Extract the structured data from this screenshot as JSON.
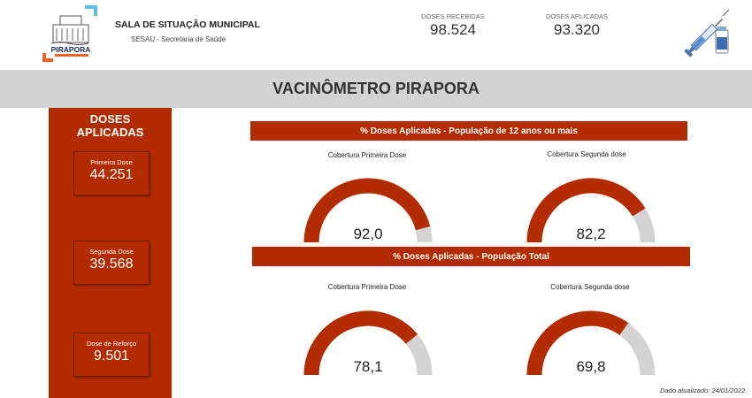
{
  "header": {
    "logo_text": "PIRAPORA",
    "title": "SALA DE SITUAÇÃO MUNICIPAL",
    "subtitle": "SESAU - Secretaria de Saúde",
    "kpis": [
      {
        "label": "DOSES RECEBIDAS",
        "value": "98.524"
      },
      {
        "label": "DOSES APLICADAS",
        "value": "93.320"
      }
    ],
    "vaccine_icon": "syringe-vial-icon"
  },
  "banner": {
    "title": "VACINÔMETRO PIRAPORA"
  },
  "sidebar": {
    "title_line1": "DOSES",
    "title_line2": "APLICADAS",
    "doses": [
      {
        "label": "Primeira Dose",
        "value": "44.251"
      },
      {
        "label": "Segunda Dose",
        "value": "39.568"
      },
      {
        "label": "Dose de Reforço",
        "value": "9.501"
      }
    ]
  },
  "sections": [
    {
      "title": "% Doses Aplicadas - População de 12 anos ou mais",
      "gauges": [
        {
          "label": "Cobertura Primeira Dose",
          "value": 92.0,
          "display": "92,0"
        },
        {
          "label": "Cobertura Segunda dose",
          "value": 82.2,
          "display": "82,2"
        }
      ]
    },
    {
      "title": "% Doses Aplicadas - População Total",
      "gauges": [
        {
          "label": "Cobertura Primeira Dose",
          "value": 78.1,
          "display": "78,1"
        },
        {
          "label": "Cobertura Segunda dose",
          "value": 69.8,
          "display": "69,8"
        }
      ]
    }
  ],
  "footer": {
    "updated": "Dado atualizado: 24/01/2022"
  },
  "colors": {
    "accent": "#b22c00",
    "track": "#d3d3d3",
    "banner_bg": "#d3d3d3"
  }
}
